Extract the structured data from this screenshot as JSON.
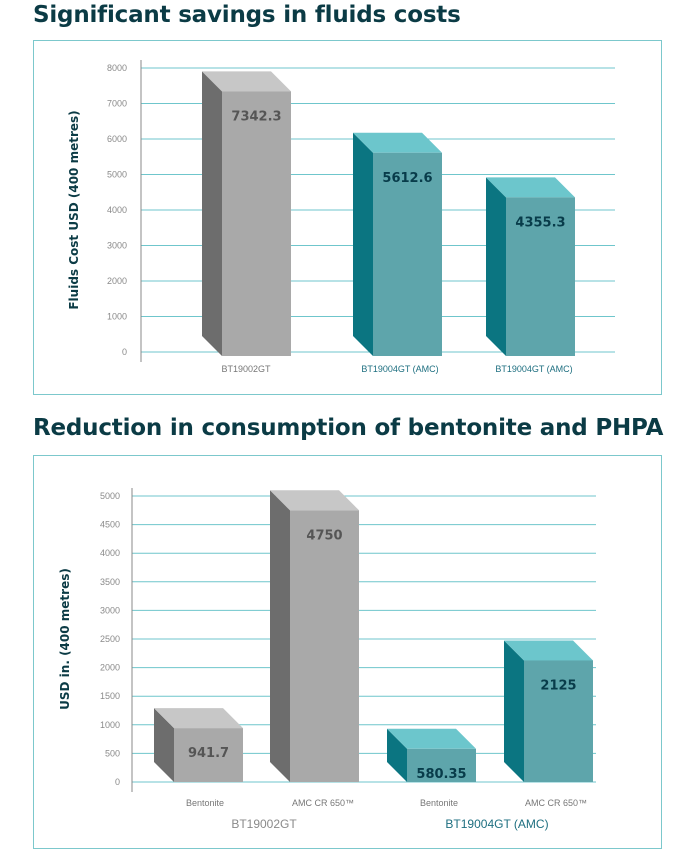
{
  "headings": {
    "top": "Significant savings in fluids costs",
    "bottom": "Reduction in consumption of bentonite and PHPA"
  },
  "colors": {
    "heading": "#0b3b45",
    "border": "#7cc8cc",
    "gridline": "#6fc6cc",
    "gray_front": "#a9a9a9",
    "gray_side": "#6d6d6d",
    "gray_top": "#c7c7c7",
    "teal_front": "#5ea5ab",
    "teal_side": "#0b7581",
    "teal_top": "#6cc6cc",
    "label_gray": "#555555",
    "label_teal": "#083c4a",
    "axis_text_teal": "#1e6f80"
  },
  "chart_data": [
    {
      "type": "bar",
      "title": "Significant savings in fluids costs",
      "ylabel": "Fluids Cost USD (400 metres)",
      "xlabel": "",
      "ylim": [
        0,
        8000
      ],
      "yticks": [
        0,
        1000,
        2000,
        3000,
        4000,
        5000,
        6000,
        7000,
        8000
      ],
      "grid": true,
      "categories": [
        "BT19002GT",
        "BT19004GT (AMC)",
        "BT19004GT (AMC)"
      ],
      "values": [
        7342.3,
        5612.6,
        4355.3
      ],
      "value_labels": [
        "7342.3",
        "5612.6",
        "4355.3"
      ],
      "bar_colors": [
        "gray",
        "teal",
        "teal"
      ]
    },
    {
      "type": "bar",
      "title": "Reduction in consumption of bentonite and PHPA",
      "ylabel": "USD in. (400 metres)",
      "xlabel": "",
      "ylim": [
        0,
        5000
      ],
      "yticks": [
        0,
        500,
        1000,
        1500,
        2000,
        2500,
        3000,
        3500,
        4000,
        4500,
        5000
      ],
      "grid": true,
      "categories": [
        "Bentonite",
        "AMC CR 650™",
        "Bentonite",
        "AMC CR 650™"
      ],
      "groups": [
        "BT19002GT",
        "BT19004GT (AMC)"
      ],
      "values": [
        941.7,
        4750,
        580.35,
        2125
      ],
      "value_labels": [
        "941.7",
        "4750",
        "580.35",
        "2125"
      ],
      "bar_colors": [
        "gray",
        "gray",
        "teal",
        "teal"
      ]
    }
  ]
}
